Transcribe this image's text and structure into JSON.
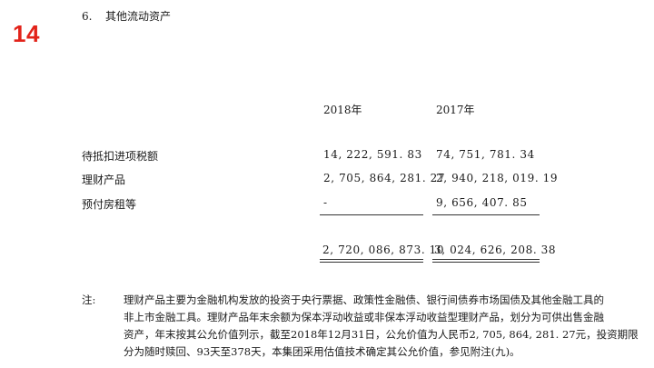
{
  "page_number": "14",
  "section": {
    "number": "6.",
    "title": "其他流动资产"
  },
  "table": {
    "columns": [
      "2018年",
      "2017年"
    ],
    "rows": [
      {
        "label": "待抵扣进项税额",
        "y2018": "14, 222, 591. 83",
        "y2017": "74, 751, 781. 34"
      },
      {
        "label": "理财产品",
        "y2018": "2, 705, 864, 281. 27",
        "y2017": "2, 940, 218, 019. 19"
      },
      {
        "label": "预付房租等",
        "y2018": "-",
        "y2017": "9, 656, 407. 85"
      }
    ],
    "totals": {
      "y2018": "2, 720, 086, 873. 10",
      "y2017": "3, 024, 626, 208. 38"
    }
  },
  "note": {
    "label": "注:",
    "lines": [
      "理财产品主要为金融机构发放的投资于央行票据、政策性金融债、银行间债券市场国债及其他金融工具的",
      "非上市金融工具。理财产品年末余额为保本浮动收益或非保本浮动收益型理财产品，划分为可供出售金融",
      "资产，年末按其公允价值列示，截至2018年12月31日，公允价值为人民币2, 705, 864, 281. 27元，投资期限",
      "分为随时赎回、93天至378天，本集团采用估值技术确定其公允价值，参见附注(九)。"
    ]
  },
  "colors": {
    "page_number": "#e2231a",
    "text": "#1a1a1a"
  }
}
